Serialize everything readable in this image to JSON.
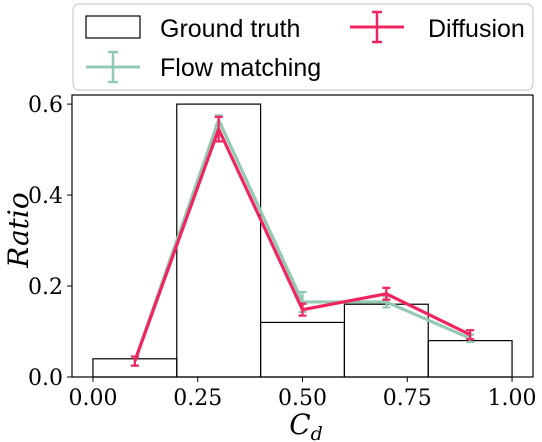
{
  "chart_data": {
    "type": "bar",
    "xlabel": "C_d",
    "ylabel": "Ratio",
    "xlim": [
      -0.05,
      1.05
    ],
    "ylim": [
      0,
      0.62
    ],
    "xticks": [
      "0.00",
      "0.25",
      "0.50",
      "0.75",
      "1.00"
    ],
    "xtick_values": [
      0,
      0.25,
      0.5,
      0.75,
      1.0
    ],
    "yticks": [
      "0.0",
      "0.2",
      "0.4",
      "0.6"
    ],
    "ytick_values": [
      0,
      0.2,
      0.4,
      0.6
    ],
    "grid": false,
    "legend_position": "top (outside)",
    "histogram": {
      "name": "Ground truth",
      "bin_edges": [
        0.0,
        0.2,
        0.4,
        0.6,
        0.8,
        1.0
      ],
      "values": [
        0.04,
        0.6,
        0.12,
        0.16,
        0.08
      ],
      "edge_color": "#000000"
    },
    "series": [
      {
        "name": "Flow matching",
        "color": "#93c9b2",
        "x": [
          0.1,
          0.3,
          0.5,
          0.7,
          0.9
        ],
        "y": [
          0.035,
          0.565,
          0.165,
          0.165,
          0.085
        ],
        "err": [
          0.01,
          0.01,
          0.022,
          0.012,
          0.008
        ]
      },
      {
        "name": "Diffusion",
        "color": "#f0245f",
        "x": [
          0.1,
          0.3,
          0.5,
          0.7,
          0.9
        ],
        "y": [
          0.035,
          0.545,
          0.148,
          0.183,
          0.093
        ],
        "err": [
          0.01,
          0.027,
          0.013,
          0.013,
          0.01
        ]
      }
    ]
  }
}
